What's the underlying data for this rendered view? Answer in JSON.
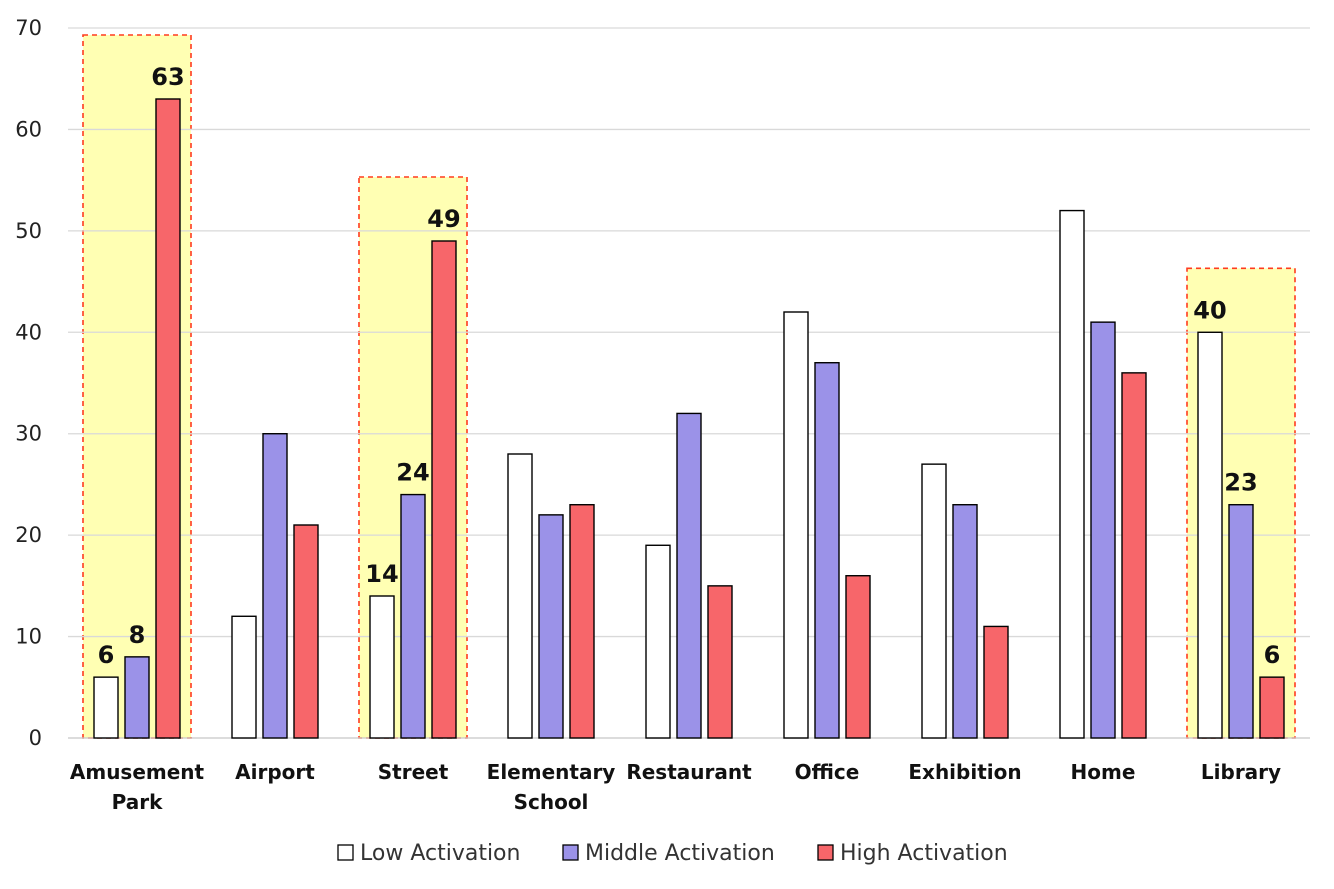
{
  "chart_data": {
    "type": "bar",
    "title": "",
    "xlabel": "",
    "ylabel": "",
    "ylim": [
      0,
      70
    ],
    "yticks": [
      0,
      10,
      20,
      30,
      40,
      50,
      60,
      70
    ],
    "ytick_labels": [
      "0",
      "10",
      "20",
      "30",
      "40",
      "50",
      "60",
      "70"
    ],
    "grid": true,
    "legend_position": "bottom",
    "categories": [
      [
        "Amusement",
        "Park"
      ],
      [
        "Airport"
      ],
      [
        "Street"
      ],
      [
        "Elementary",
        "School"
      ],
      [
        "Restaurant"
      ],
      [
        "Office"
      ],
      [
        "Exhibition"
      ],
      [
        "Home"
      ],
      [
        "Library"
      ]
    ],
    "series": [
      {
        "name": "Low Activation",
        "color": "#ffffff",
        "values": [
          6,
          12,
          14,
          28,
          19,
          42,
          27,
          52,
          40
        ]
      },
      {
        "name": "Middle Activation",
        "color": "#9b92e8",
        "values": [
          8,
          30,
          24,
          22,
          32,
          37,
          23,
          41,
          23
        ]
      },
      {
        "name": "High Activation",
        "color": "#f7666a",
        "values": [
          63,
          21,
          49,
          23,
          15,
          16,
          11,
          36,
          6
        ]
      }
    ],
    "highlighted_categories": [
      0,
      2,
      8
    ],
    "highlight_fill": "#ffffb3",
    "highlight_border": "#ff3b1f",
    "labeled_values": [
      {
        "category": 0,
        "series": 0,
        "text": "6"
      },
      {
        "category": 0,
        "series": 1,
        "text": "8"
      },
      {
        "category": 0,
        "series": 2,
        "text": "63"
      },
      {
        "category": 2,
        "series": 0,
        "text": "14"
      },
      {
        "category": 2,
        "series": 1,
        "text": "24"
      },
      {
        "category": 2,
        "series": 2,
        "text": "49"
      },
      {
        "category": 8,
        "series": 0,
        "text": "40"
      },
      {
        "category": 8,
        "series": 1,
        "text": "23"
      },
      {
        "category": 8,
        "series": 2,
        "text": "6"
      }
    ]
  }
}
